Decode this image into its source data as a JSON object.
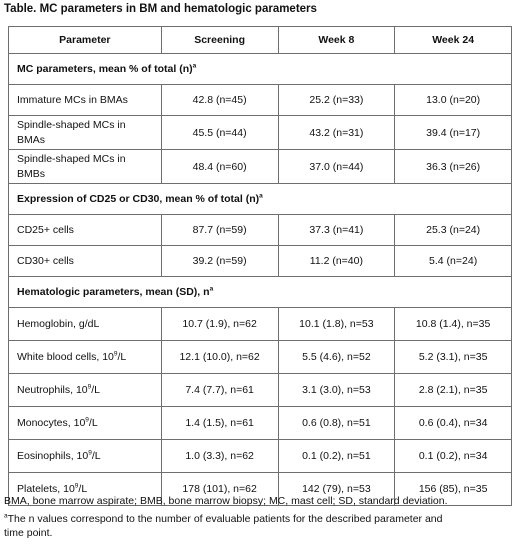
{
  "title": "Table. MC parameters in BM and hematologic parameters",
  "headers": [
    "Parameter",
    "Screening",
    "Week 8",
    "Week 24"
  ],
  "sections": [
    {
      "label": "MC parameters, mean % of total (n)",
      "label_sup": "a",
      "rows": [
        {
          "param": "Immature MCs in BMAs",
          "values": [
            "42.8 (n=45)",
            "25.2 (n=33)",
            "13.0 (n=20)"
          ]
        },
        {
          "param_line1": "Spindle-shaped MCs in",
          "param_line2": "BMAs",
          "values": [
            "45.5 (n=44)",
            "43.2 (n=31)",
            "39.4 (n=17)"
          ]
        },
        {
          "param_line1": "Spindle-shaped MCs in",
          "param_line2": "BMBs",
          "values": [
            "48.4 (n=60)",
            "37.0 (n=44)",
            "36.3 (n=26)"
          ]
        }
      ]
    },
    {
      "label": "Expression of CD25 or CD30, mean % of total (n)",
      "label_sup": "a",
      "rows": [
        {
          "param": "CD25+ cells",
          "values": [
            "87.7 (n=59)",
            "37.3 (n=41)",
            "25.3 (n=24)"
          ]
        },
        {
          "param": "CD30+ cells",
          "values": [
            "39.2 (n=59)",
            "11.2 (n=40)",
            "5.4 (n=24)"
          ]
        }
      ]
    },
    {
      "label": "Hematologic parameters, mean (SD), n",
      "label_sup": "a",
      "rows": [
        {
          "param": "Hemoglobin, g/dL",
          "values": [
            "10.7 (1.9), n=62",
            "10.1 (1.8), n=53",
            "10.8 (1.4), n=35"
          ]
        },
        {
          "param_pre": "White blood cells, 10",
          "param_sup": "9",
          "param_post": "/L",
          "values": [
            "12.1 (10.0), n=62",
            "5.5 (4.6), n=52",
            "5.2 (3.1), n=35"
          ]
        },
        {
          "param_pre": "Neutrophils, 10",
          "param_sup": "9",
          "param_post": "/L",
          "values": [
            "7.4 (7.7), n=61",
            "3.1 (3.0), n=53",
            "2.8 (2.1), n=35"
          ]
        },
        {
          "param_pre": "Monocytes, 10",
          "param_sup": "9",
          "param_post": "/L",
          "values": [
            "1.4 (1.5), n=61",
            "0.6 (0.8), n=51",
            "0.6 (0.4), n=34"
          ]
        },
        {
          "param_pre": "Eosinophils, 10",
          "param_sup": "9",
          "param_post": "/L",
          "values": [
            "1.0 (3.3), n=62",
            "0.1 (0.2), n=51",
            "0.1 (0.2), n=34"
          ]
        },
        {
          "param_pre": "Platelets, 10",
          "param_sup": "9",
          "param_post": "/L",
          "values": [
            "178 (101), n=62",
            "142 (79), n=53",
            "156 (85), n=35"
          ]
        }
      ]
    }
  ],
  "footnotes": {
    "abbreviations": "BMA, bone marrow aspirate; BMB, bone marrow biopsy; MC, mast cell; SD, standard deviation.",
    "a_sup": "a",
    "a_line1": "The n values correspond to the number of evaluable patients for the described parameter and",
    "a_line2": "time point."
  }
}
